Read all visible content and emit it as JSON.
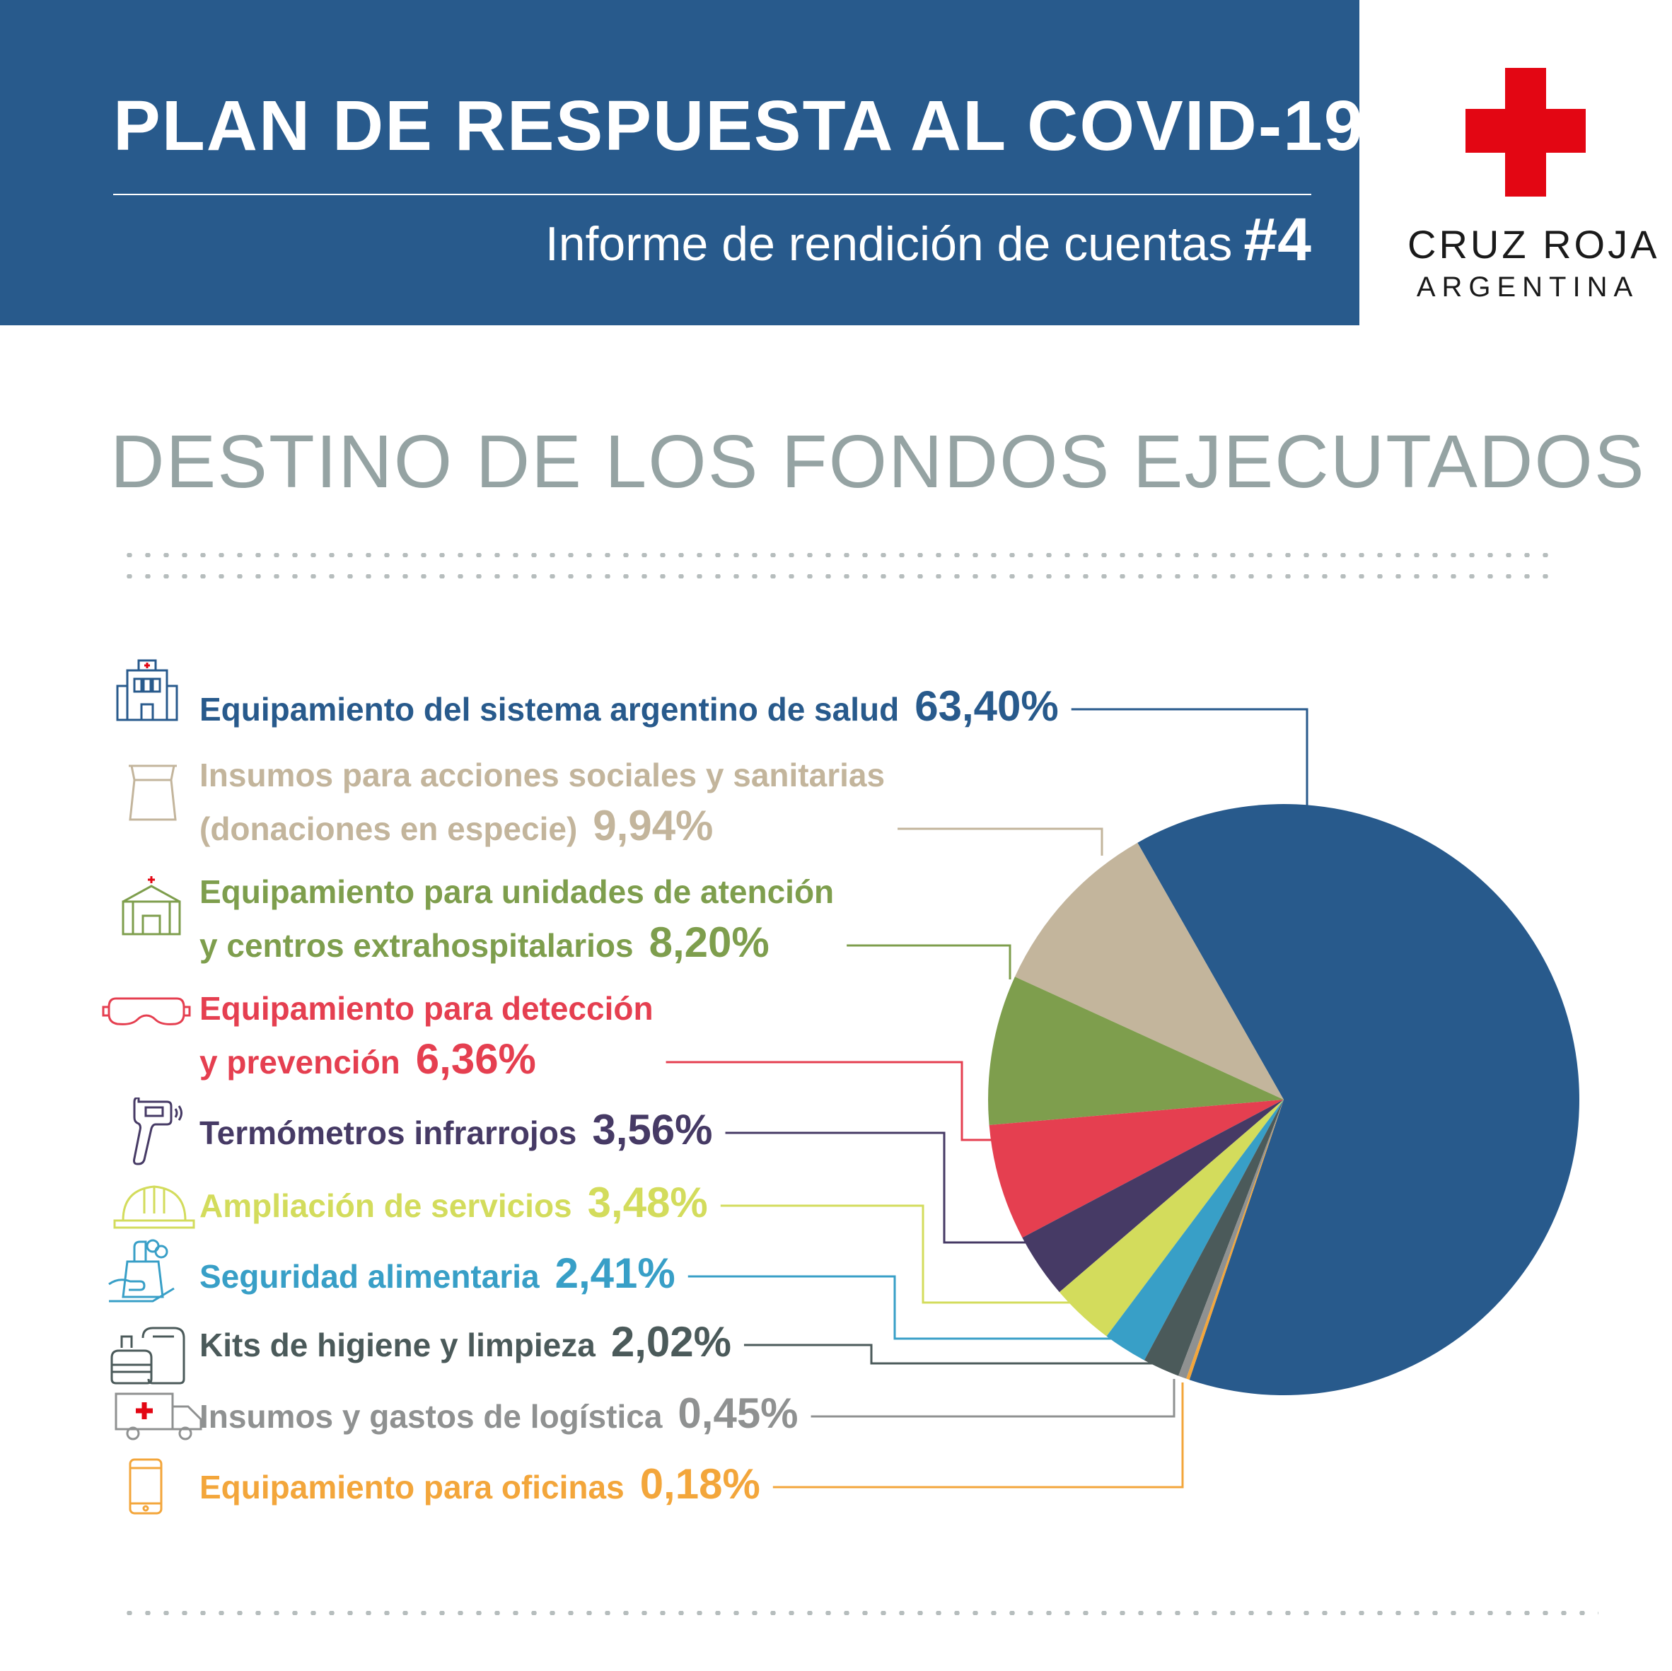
{
  "header": {
    "title": "PLAN DE RESPUESTA AL COVID-19",
    "subtitle": "Informe de rendición de cuentas",
    "report_number": "#4"
  },
  "logo": {
    "org_line1": "CRUZ ROJA",
    "org_line2": "ARGENTINA",
    "cross_color": "#e30613"
  },
  "section_title": "DESTINO DE LOS FONDOS EJECUTADOS",
  "chart_data": {
    "type": "pie",
    "title": "DESTINO DE LOS FONDOS EJECUTADOS",
    "legend_placement": "left",
    "slices": [
      {
        "label": "Equipamiento del sistema argentino de salud",
        "value": 63.4,
        "value_label": "63,40%",
        "color": "#285a8c",
        "icon": "hospital-icon"
      },
      {
        "label": "Insumos para acciones sociales y sanitarias (donaciones en especie)",
        "value": 9.94,
        "value_label": "9,94%",
        "color": "#c3b59c",
        "icon": "shopping-bag-icon"
      },
      {
        "label": "Equipamiento para unidades de atención y centros extrahospitalarios",
        "value": 8.2,
        "value_label": "8,20%",
        "color": "#7e9e4d",
        "icon": "field-tent-icon"
      },
      {
        "label": "Equipamiento para detección y prevención",
        "value": 6.36,
        "value_label": "6,36%",
        "color": "#e53f50",
        "icon": "safety-goggles-icon"
      },
      {
        "label": "Termómetros infrarrojos",
        "value": 3.56,
        "value_label": "3,56%",
        "color": "#463a65",
        "icon": "infrared-thermometer-icon"
      },
      {
        "label": "Ampliación de servicios",
        "value": 3.48,
        "value_label": "3,48%",
        "color": "#d3dc5c",
        "icon": "hard-hat-icon"
      },
      {
        "label": "Seguridad alimentaria",
        "value": 2.41,
        "value_label": "2,41%",
        "color": "#389fc7",
        "icon": "food-parcel-icon"
      },
      {
        "label": "Kits de higiene y limpieza",
        "value": 2.02,
        "value_label": "2,02%",
        "color": "#4b5a5a",
        "icon": "hygiene-kit-icon"
      },
      {
        "label": "Insumos y gastos de logística",
        "value": 0.45,
        "value_label": "0,45%",
        "color": "#8f9191",
        "icon": "ambulance-truck-icon"
      },
      {
        "label": "Equipamiento para oficinas",
        "value": 0.18,
        "value_label": "0,18%",
        "color": "#f3a63b",
        "icon": "mobile-device-icon"
      }
    ],
    "legend_lines": [
      [
        "Equipamiento del sistema argentino de salud"
      ],
      [
        "Insumos para acciones sociales y sanitarias",
        "(donaciones en especie)"
      ],
      [
        "Equipamiento para unidades de atención",
        "y centros extrahospitalarios"
      ],
      [
        "Equipamiento para detección",
        "y prevención"
      ],
      [
        "Termómetros infrarrojos"
      ],
      [
        "Ampliación de servicios"
      ],
      [
        "Seguridad alimentaria"
      ],
      [
        "Kits de higiene y limpieza"
      ],
      [
        "Insumos y gastos de logística"
      ],
      [
        "Equipamiento para oficinas"
      ]
    ]
  }
}
